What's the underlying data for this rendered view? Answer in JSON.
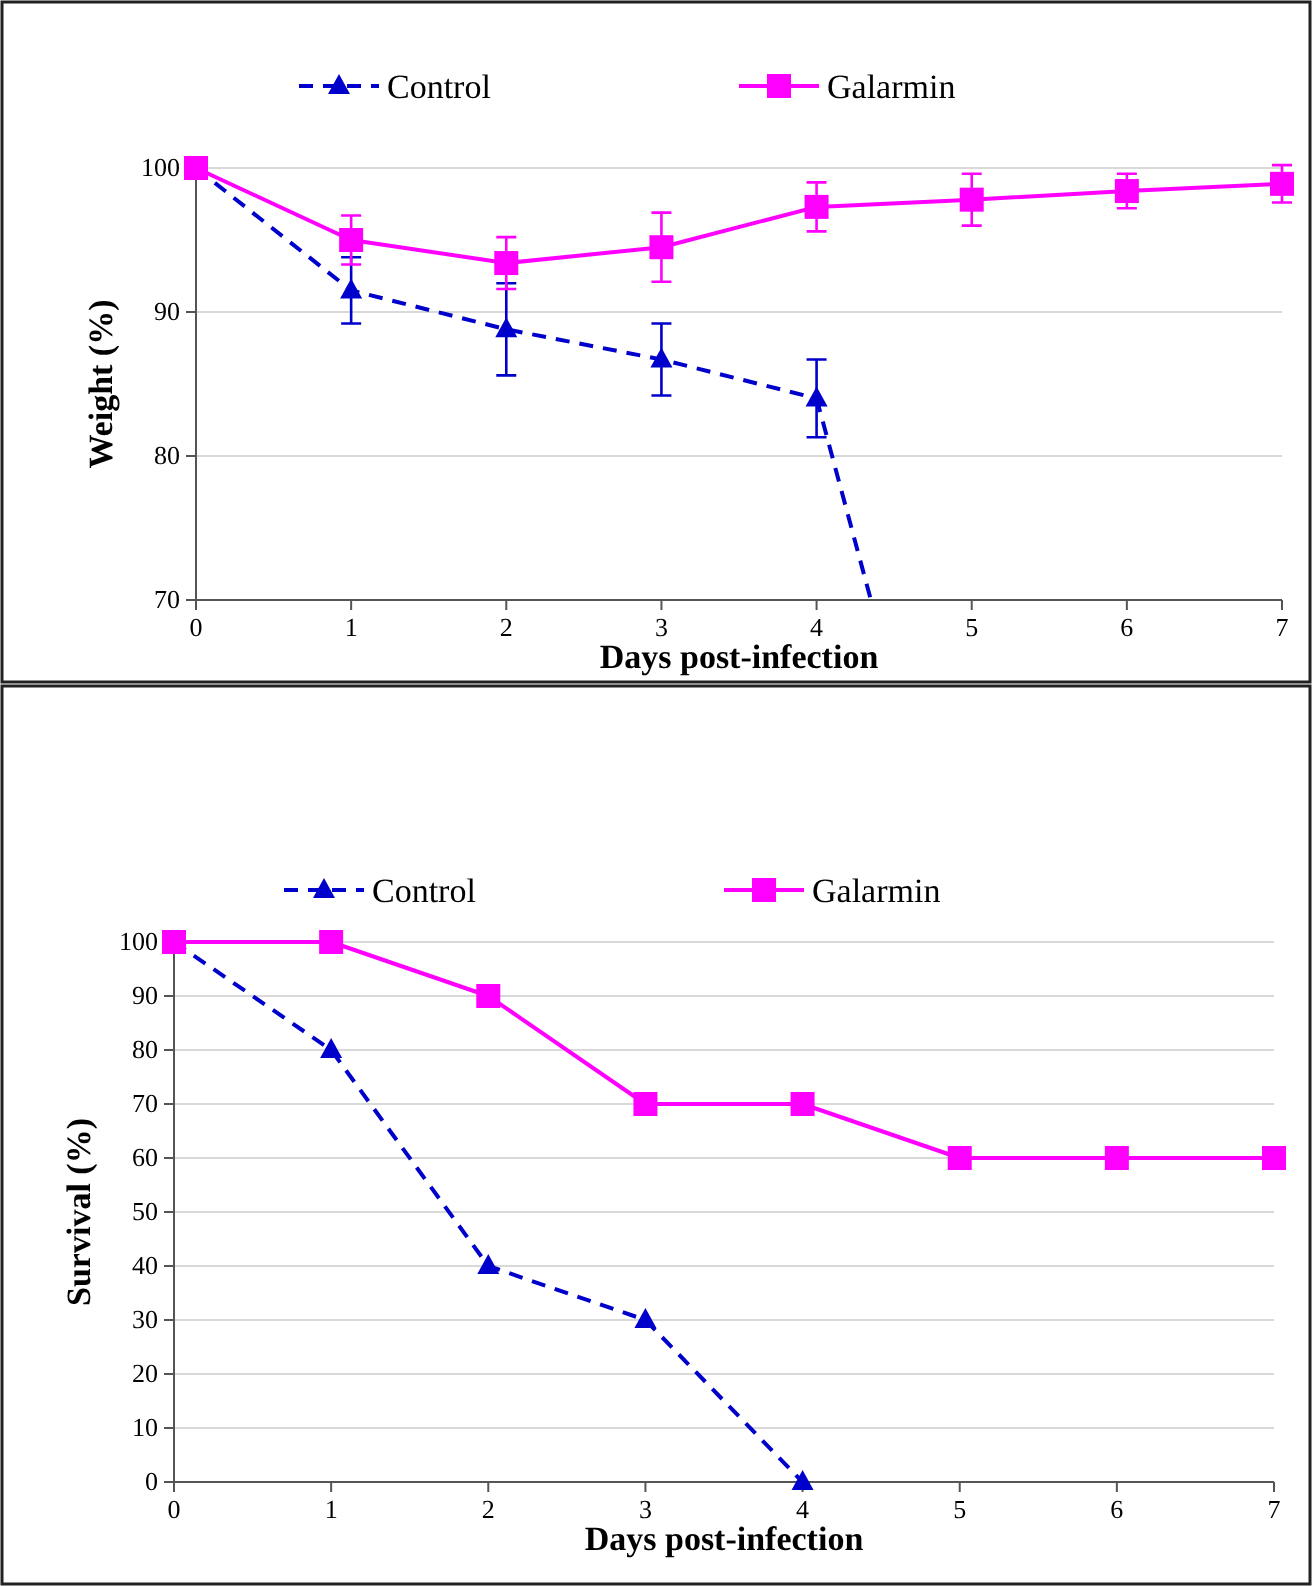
{
  "chart_data": [
    {
      "type": "line",
      "xlabel": "Days post-infection",
      "ylabel": "Weight  (%)",
      "x": [
        0,
        1,
        2,
        3,
        4,
        5,
        6,
        7
      ],
      "xlim": [
        0,
        7
      ],
      "xticks": [
        0,
        1,
        2,
        3,
        4,
        5,
        6,
        7
      ],
      "ylim": [
        70,
        100
      ],
      "yticks": [
        70,
        80,
        90,
        100
      ],
      "grid": "y",
      "legend": "top",
      "series": [
        {
          "name": "Control",
          "color": "#0000cc",
          "marker": "triangle",
          "line_style": "dashed",
          "x": [
            0,
            1,
            2,
            3,
            4
          ],
          "values": [
            100,
            91.5,
            88.8,
            86.7,
            84
          ],
          "errors": [
            null,
            2.3,
            3.2,
            2.5,
            2.7
          ]
        },
        {
          "type": "line",
          "color": "#0000cc",
          "marker": "none",
          "line_style": "dashed",
          "x": [
            4,
            4.35
          ],
          "values": [
            84,
            70
          ]
        },
        {
          "name": "Galarmin",
          "color": "#ff00ff",
          "marker": "square",
          "line_style": "solid",
          "values": [
            100,
            95,
            93.4,
            94.5,
            97.3,
            97.8,
            98.4,
            98.9
          ],
          "errors": [
            null,
            1.7,
            1.8,
            2.4,
            1.7,
            1.8,
            1.2,
            1.3
          ]
        }
      ]
    },
    {
      "type": "line",
      "xlabel": "Days post-infection",
      "ylabel": "Survival  (%)",
      "x": [
        0,
        1,
        2,
        3,
        4,
        5,
        6,
        7
      ],
      "xlim": [
        0,
        7
      ],
      "xticks": [
        0,
        1,
        2,
        3,
        4,
        5,
        6,
        7
      ],
      "ylim": [
        0,
        100
      ],
      "yticks": [
        0,
        10,
        20,
        30,
        40,
        50,
        60,
        70,
        80,
        90,
        100
      ],
      "grid": "y",
      "legend": "top",
      "series": [
        {
          "name": "Control",
          "color": "#0000cc",
          "marker": "triangle",
          "line_style": "dashed",
          "x": [
            0,
            1,
            2,
            3,
            4
          ],
          "values": [
            100,
            80,
            40,
            30,
            0
          ]
        },
        {
          "name": "Galarmin",
          "color": "#ff00ff",
          "marker": "square",
          "line_style": "solid",
          "values": [
            100,
            100,
            90,
            70,
            70,
            60,
            60,
            60
          ]
        }
      ]
    }
  ]
}
